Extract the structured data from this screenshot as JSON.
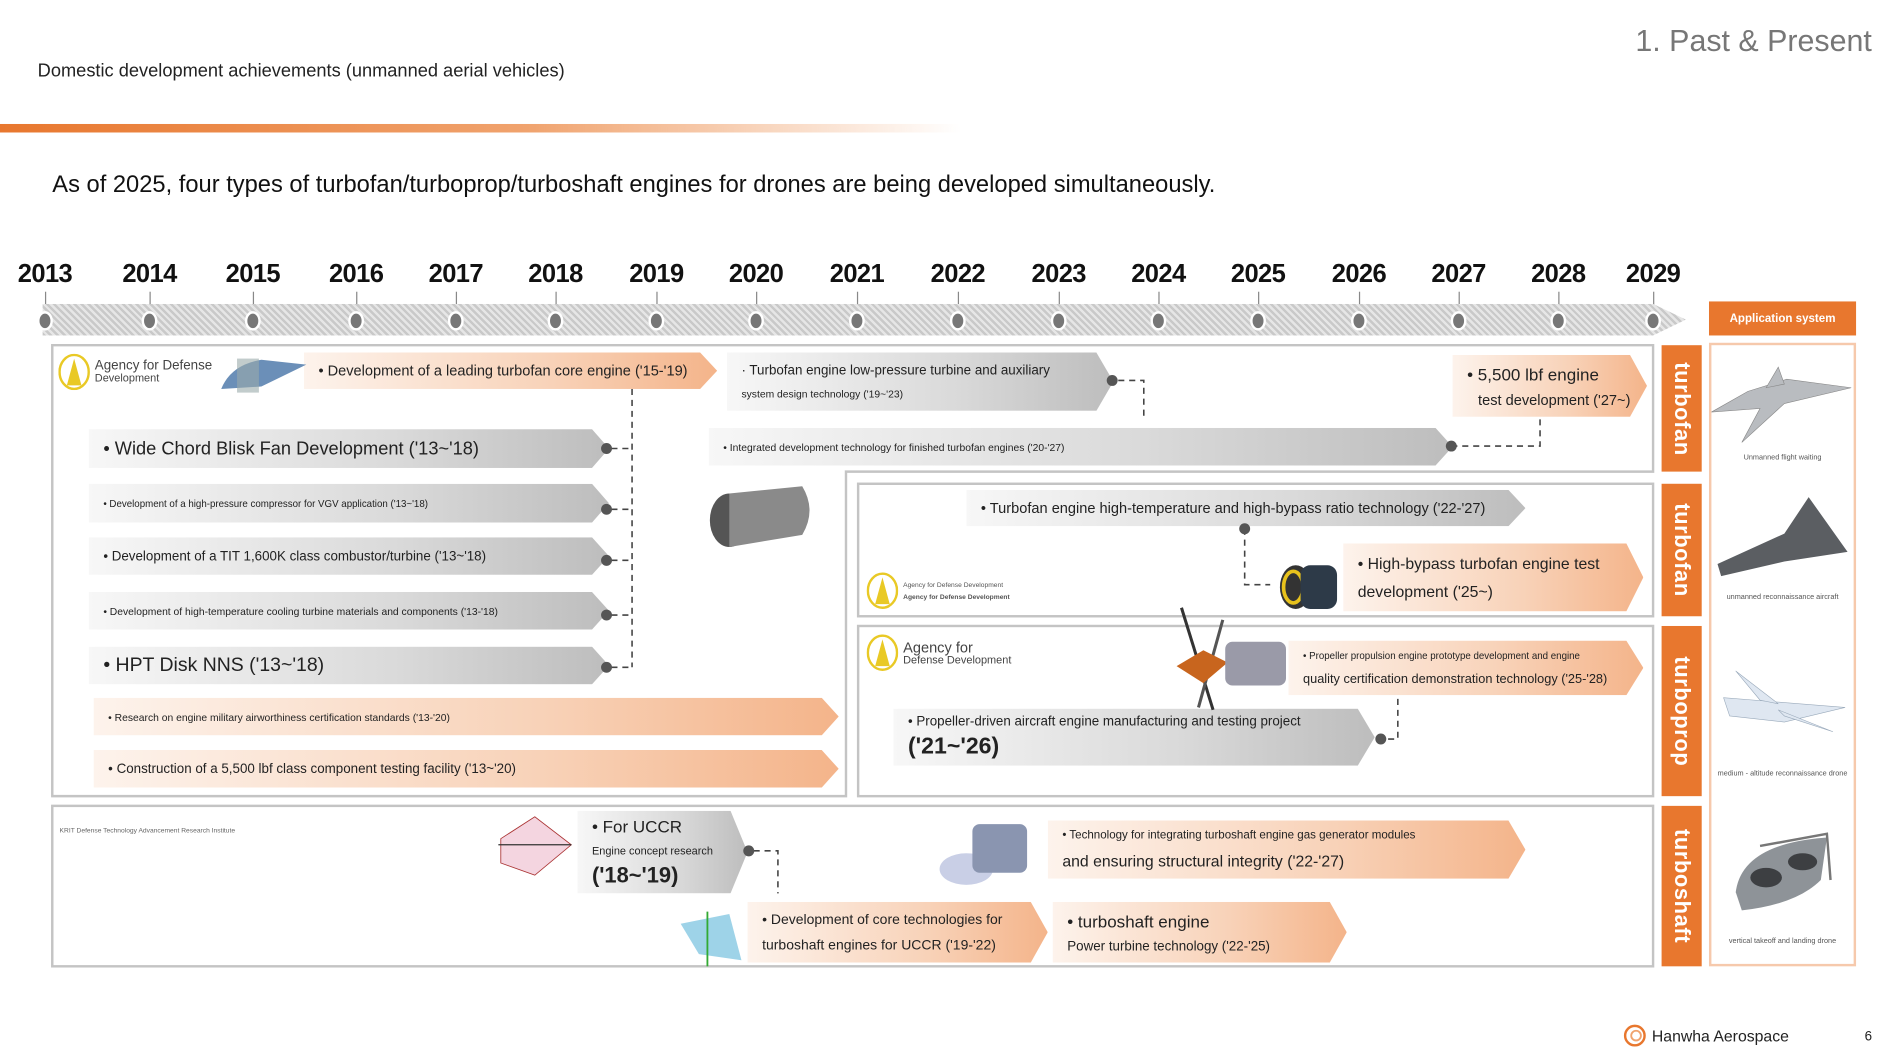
{
  "header": {
    "section_title": "1. Past & Present",
    "subtitle": "Domestic development achievements (unmanned aerial vehicles)",
    "headline": "As of 2025, four types of turbofan/turboprop/turboshaft engines for drones are being developed simultaneously."
  },
  "timeline": {
    "years": [
      "2013",
      "2014",
      "2015",
      "2016",
      "2017",
      "2018",
      "2019",
      "2020",
      "2021",
      "2022",
      "2023",
      "2024",
      "2025",
      "2026",
      "2027",
      "2028",
      "2029"
    ]
  },
  "application": {
    "header": "Application system",
    "captions": [
      "Unmanned flight waiting",
      "unmanned reconnaissance aircraft",
      "medium - altitude reconnaissance drone",
      "vertical takeoff and landing drone"
    ]
  },
  "categories": [
    "turbofan",
    "turbofan",
    "turboprop",
    "turboshaft"
  ],
  "logos": {
    "add_line1": "Agency for Defense",
    "add_line2": "Development",
    "add_small1": "Agency for Defense Development",
    "add_small2": "Agency for Defense Development",
    "add3_line1": "Agency for",
    "add3_line2": "Defense Development",
    "krit": "KRIT Defense Technology Advancement Research Institute"
  },
  "items": {
    "core_engine": "Development of a leading turbofan core engine ('15-'19)",
    "lp_turbine_1": "· Turbofan engine low-pressure turbine and auxiliary",
    "lp_turbine_2": "system design technology ('19~'23)",
    "blisk": "Wide Chord Blisk Fan Development ('13~'18)",
    "hpc": "Development of a high-pressure compressor for VGV application ('13~'18)",
    "combustor": "Development of a TIT 1,600K class combustor/turbine ('13~'18)",
    "cooling": "Development of high-temperature cooling turbine materials and components ('13-'18)",
    "hpt": "HPT Disk NNS ('13~'18)",
    "airworthiness": "Research on engine military airworthiness certification standards ('13-'20)",
    "facility": "Construction of a 5,500 lbf class component testing facility ('13~'20)",
    "integrated": "Integrated development technology for finished turbofan engines ('20-'27)",
    "lbf_1": "5,500 lbf engine",
    "lbf_2": "test development ('27~)",
    "high_bypass_tech": "Turbofan engine high-temperature and high-bypass ratio technology ('22-'27)",
    "high_bypass_test_1": "High-bypass turbofan engine test",
    "high_bypass_test_2": "development ('25~)",
    "propeller_proto_1": "Propeller propulsion engine prototype development and engine",
    "propeller_proto_2": "quality certification demonstration technology ('25-'28)",
    "propeller_mfg_1": "Propeller-driven aircraft engine manufacturing and testing project",
    "propeller_mfg_2": "('21~'26)",
    "uccr_1": "For UCCR",
    "uccr_2": "Engine concept research",
    "uccr_3": "('18~'19)",
    "gas_gen_1": "Technology for integrating turboshaft engine gas generator modules",
    "gas_gen_2": "and ensuring structural integrity ('22-'27)",
    "core_uccr_1": "Development of core technologies for",
    "core_uccr_2": "turboshaft engines for UCCR ('19-'22)",
    "power_turbine_1": "turboshaft engine",
    "power_turbine_2": "Power turbine technology ('22-'25)"
  },
  "footer": {
    "brand": "Hanwha Aerospace",
    "page": "6"
  },
  "colors": {
    "accent": "#E8772E",
    "accent_light": "#F6C9AC",
    "gray_bar": "#BDBDBD"
  }
}
